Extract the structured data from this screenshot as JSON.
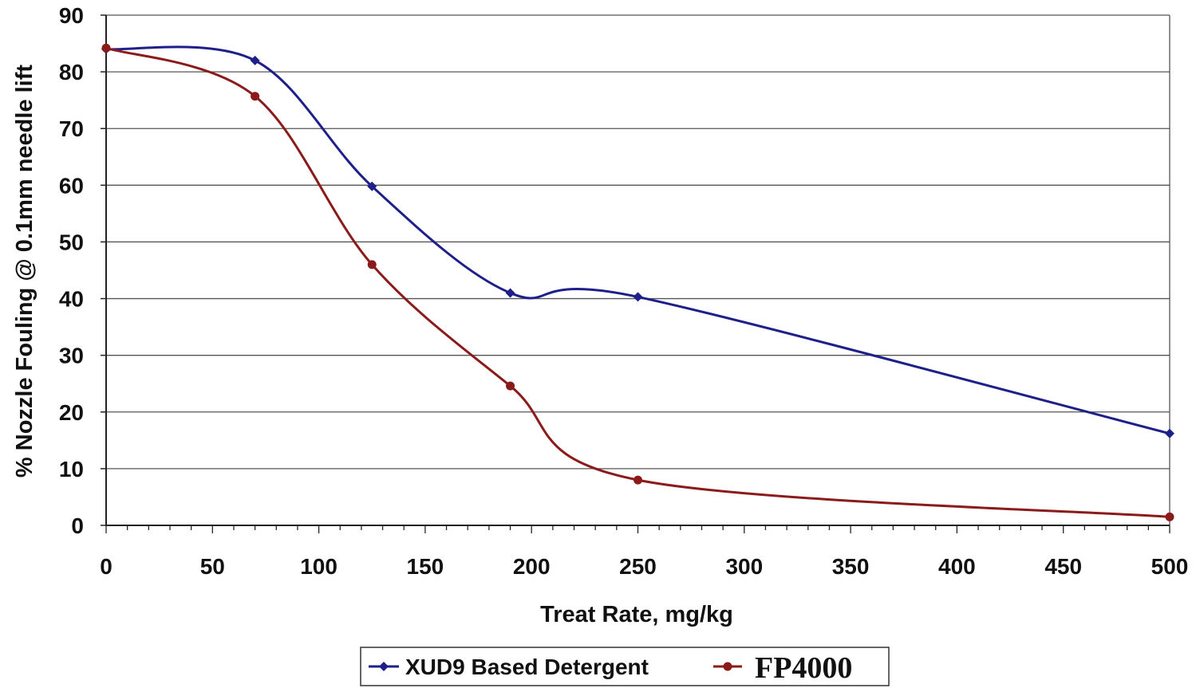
{
  "chart_data": {
    "type": "line",
    "title": "",
    "xlabel": "Treat Rate, mg/kg",
    "ylabel": "% Nozzle Fouling @ 0.1mm needle lift",
    "xlim": [
      0,
      500
    ],
    "ylim": [
      0,
      90
    ],
    "x_ticks": [
      0,
      50,
      100,
      150,
      200,
      250,
      300,
      350,
      400,
      450,
      500
    ],
    "y_ticks": [
      0,
      10,
      20,
      30,
      40,
      50,
      60,
      70,
      80,
      90
    ],
    "grid": "horizontal",
    "legend": "bottom",
    "smooth": true,
    "series": [
      {
        "name": "XUD9 Based Detergent",
        "color": "#1f1f8a",
        "marker": "diamond",
        "x": [
          0,
          70,
          125,
          190,
          250,
          500
        ],
        "y": [
          84,
          82,
          59.8,
          41,
          40.3,
          16.2
        ]
      },
      {
        "name": "FP4000",
        "color": "#8b1a1a",
        "marker": "circle",
        "x": [
          0,
          70,
          125,
          190,
          250,
          500
        ],
        "y": [
          84.2,
          75.7,
          46,
          24.6,
          8,
          1.5
        ]
      }
    ]
  }
}
